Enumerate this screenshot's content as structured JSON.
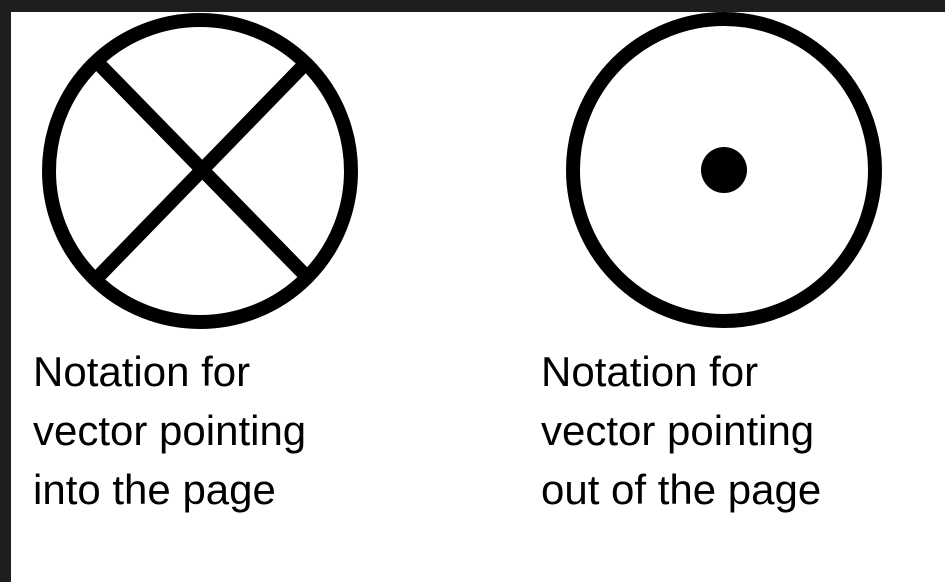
{
  "colors": {
    "frame": "#1e1e1e",
    "background": "#ffffff",
    "ink": "#000000"
  },
  "symbols": [
    {
      "meaning": "vector pointing into the page",
      "glyph": "circle-with-cross",
      "caption_lines": [
        "Notation for",
        "vector pointing",
        "into the page"
      ]
    },
    {
      "meaning": "vector pointing out of the page",
      "glyph": "circle-with-dot",
      "caption_lines": [
        "Notation for",
        "vector pointing",
        "out of the page"
      ]
    }
  ]
}
